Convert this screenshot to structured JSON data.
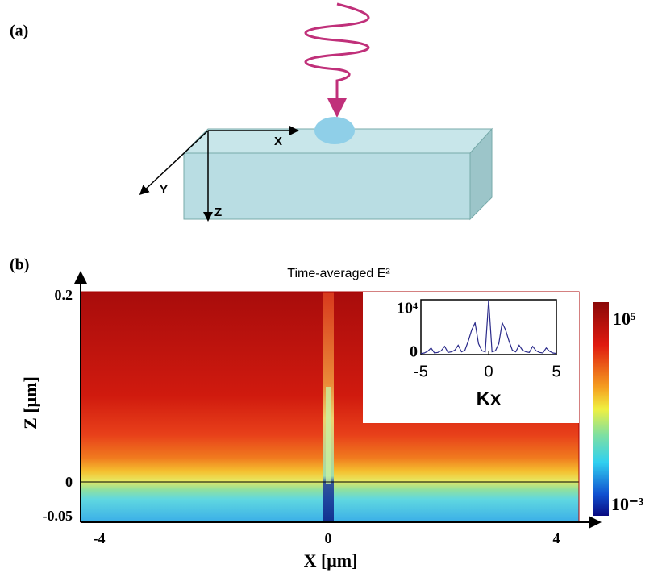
{
  "panel_a": {
    "label": "(a)",
    "axis_x": "X",
    "axis_y": "Y",
    "axis_z": "Z"
  },
  "panel_b": {
    "label": "(b)",
    "title": "Time-averaged E²",
    "x_label": "X [μm]",
    "z_label": "Z [μm]",
    "x_tick_labels": [
      "-4",
      "0",
      "4"
    ],
    "z_tick_labels": [
      "0.2",
      "0",
      "-0.05"
    ],
    "colorbar_labels": [
      "10⁵",
      "10⁻³"
    ]
  },
  "inset": {
    "type": "line",
    "xlabel": "Kx",
    "color": "#2a2a8a",
    "x": [
      -5,
      -4.75,
      -4.5,
      -4.25,
      -4,
      -3.75,
      -3.5,
      -3.25,
      -3,
      -2.75,
      -2.5,
      -2.25,
      -2,
      -1.75,
      -1.5,
      -1.25,
      -1,
      -0.75,
      -0.5,
      -0.25,
      0,
      0.25,
      0.5,
      0.75,
      1,
      1.25,
      1.5,
      1.75,
      2,
      2.25,
      2.5,
      2.75,
      3,
      3.25,
      3.5,
      3.75,
      4,
      4.25,
      4.5,
      4.75,
      5
    ],
    "values": [
      200,
      300,
      600,
      1200,
      300,
      400,
      700,
      1500,
      400,
      500,
      800,
      1700,
      500,
      800,
      2500,
      4500,
      5800,
      2000,
      700,
      500,
      10000,
      500,
      700,
      2000,
      5800,
      4500,
      2500,
      800,
      500,
      1700,
      800,
      500,
      400,
      1500,
      700,
      400,
      300,
      1200,
      600,
      300,
      200
    ],
    "xlim": [
      -5,
      5
    ],
    "ylim": [
      0,
      10000
    ],
    "xticks": [
      -5,
      0,
      5
    ],
    "yticks": [
      0,
      {
        "value": 10000,
        "label": "10⁴"
      }
    ]
  }
}
